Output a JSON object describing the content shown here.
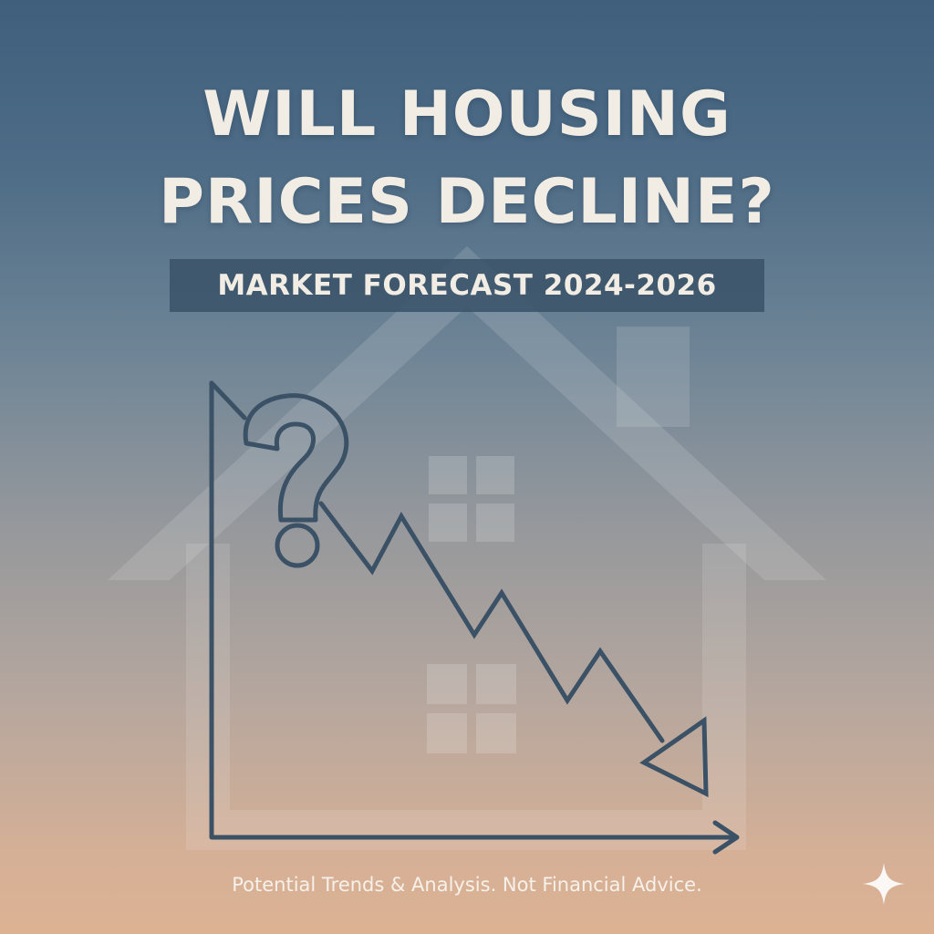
{
  "headline": {
    "line1": "WILL HOUSING",
    "line2": "PRICES DECLINE?"
  },
  "subtitle": "MARKET FORECAST 2024-2026",
  "disclaimer": "Potential Trends & Analysis. Not Financial Advice.",
  "icons": {
    "house": "house-silhouette-icon",
    "question": "question-mark-icon",
    "trend": "declining-trend-arrow-icon",
    "sparkle": "sparkle-icon"
  },
  "colors": {
    "background_top": "#3f5f7d",
    "background_bottom": "#dcb293",
    "title_text": "#f1ede4",
    "banner": "#3a5269",
    "line_art": "#3b5166"
  }
}
